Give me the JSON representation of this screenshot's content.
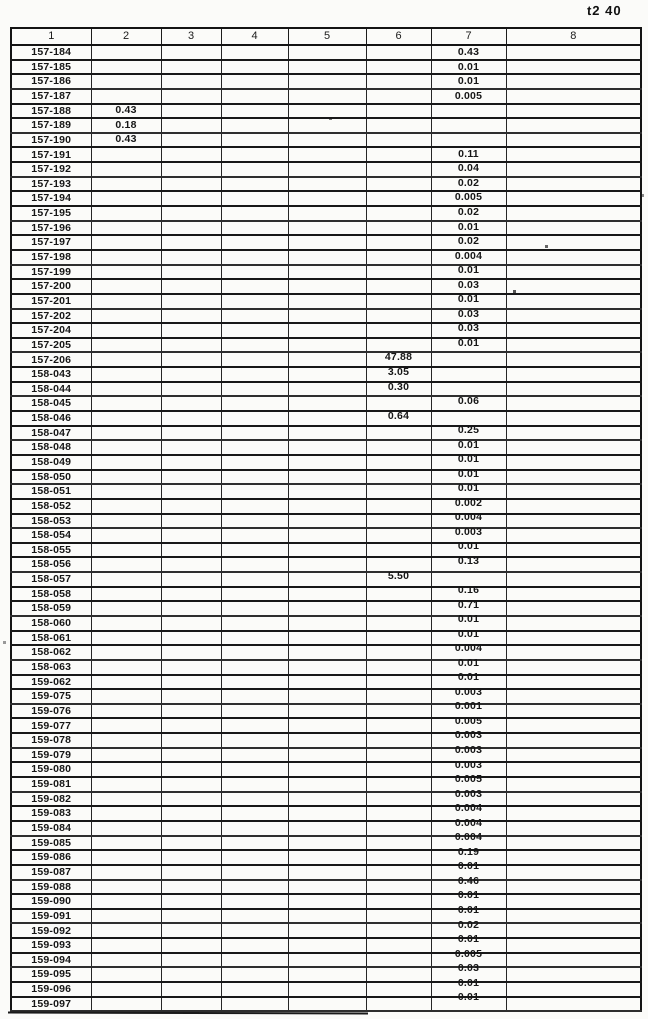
{
  "page": {
    "corner_label": "t2 40"
  },
  "table": {
    "headers": [
      "1",
      "2",
      "3",
      "4",
      "5",
      "6",
      "7",
      "8"
    ],
    "rows": [
      {
        "label": "157-184",
        "col": 7,
        "value": "0.43"
      },
      {
        "label": "157-185",
        "col": 7,
        "value": "0.01"
      },
      {
        "label": "157-186",
        "col": 7,
        "value": "0.01"
      },
      {
        "label": "157-187",
        "col": 7,
        "value": "0.005"
      },
      {
        "label": "157-188",
        "col": 2,
        "value": "0.43"
      },
      {
        "label": "157-189",
        "col": 2,
        "value": "0.18"
      },
      {
        "label": "157-190",
        "col": 2,
        "value": "0.43"
      },
      {
        "label": "157-191",
        "col": 7,
        "value": "0.11"
      },
      {
        "label": "157-192",
        "col": 7,
        "value": "0.04"
      },
      {
        "label": "157-193",
        "col": 7,
        "value": "0.02"
      },
      {
        "label": "157-194",
        "col": 7,
        "value": "0.005"
      },
      {
        "label": "157-195",
        "col": 7,
        "value": "0.02"
      },
      {
        "label": "157-196",
        "col": 7,
        "value": "0.01"
      },
      {
        "label": "157-197",
        "col": 7,
        "value": "0.02"
      },
      {
        "label": "157-198",
        "col": 7,
        "value": "0.004"
      },
      {
        "label": "157-199",
        "col": 7,
        "value": "0.01"
      },
      {
        "label": "157-200",
        "col": 7,
        "value": "0.03"
      },
      {
        "label": "157-201",
        "col": 7,
        "value": "0.01"
      },
      {
        "label": "157-202",
        "col": 7,
        "value": "0.03"
      },
      {
        "label": "157-204",
        "col": 7,
        "value": "0.03"
      },
      {
        "label": "157-205",
        "col": 7,
        "value": "0.01"
      },
      {
        "label": "157-206",
        "col": 6,
        "value": "47.88"
      },
      {
        "label": "158-043",
        "col": 6,
        "value": "3.05"
      },
      {
        "label": "158-044",
        "col": 6,
        "value": "0.30"
      },
      {
        "label": "158-045",
        "col": 7,
        "value": "0.06"
      },
      {
        "label": "158-046",
        "col": 6,
        "value": "0.64"
      },
      {
        "label": "158-047",
        "col": 7,
        "value": "0.25"
      },
      {
        "label": "158-048",
        "col": 7,
        "value": "0.01"
      },
      {
        "label": "158-049",
        "col": 7,
        "value": "0.01"
      },
      {
        "label": "158-050",
        "col": 7,
        "value": "0.01"
      },
      {
        "label": "158-051",
        "col": 7,
        "value": "0.01"
      },
      {
        "label": "158-052",
        "col": 7,
        "value": "0.002"
      },
      {
        "label": "158-053",
        "col": 7,
        "value": "0.004"
      },
      {
        "label": "158-054",
        "col": 7,
        "value": "0.003"
      },
      {
        "label": "158-055",
        "col": 7,
        "value": "0.01"
      },
      {
        "label": "158-056",
        "col": 7,
        "value": "0.13"
      },
      {
        "label": "158-057",
        "col": 6,
        "value": "5.50"
      },
      {
        "label": "158-058",
        "col": 7,
        "value": "0.16"
      },
      {
        "label": "158-059",
        "col": 7,
        "value": "0.71"
      },
      {
        "label": "158-060",
        "col": 7,
        "value": "0.01"
      },
      {
        "label": "158-061",
        "col": 7,
        "value": "0.01"
      },
      {
        "label": "158-062",
        "col": 7,
        "value": "0.004"
      },
      {
        "label": "158-063",
        "col": 7,
        "value": "0.01"
      },
      {
        "label": "159-062",
        "col": 7,
        "value": "0.01"
      },
      {
        "label": "159-075",
        "col": 7,
        "value": "0.003"
      },
      {
        "label": "159-076",
        "col": 7,
        "value": "0.001"
      },
      {
        "label": "159-077",
        "col": 7,
        "value": "0.005"
      },
      {
        "label": "159-078",
        "col": 7,
        "value": "0.003"
      },
      {
        "label": "159-079",
        "col": 7,
        "value": "0.003"
      },
      {
        "label": "159-080",
        "col": 7,
        "value": "0.003"
      },
      {
        "label": "159-081",
        "col": 7,
        "value": "0.005"
      },
      {
        "label": "159-082",
        "col": 7,
        "value": "0.003"
      },
      {
        "label": "159-083",
        "col": 7,
        "value": "0.004"
      },
      {
        "label": "159-084",
        "col": 7,
        "value": "0.004"
      },
      {
        "label": "159-085",
        "col": 7,
        "value": "0.004"
      },
      {
        "label": "159-086",
        "col": 7,
        "value": "0.19"
      },
      {
        "label": "159-087",
        "col": 7,
        "value": "0.01"
      },
      {
        "label": "159-088",
        "col": 7,
        "value": "0.46"
      },
      {
        "label": "159-090",
        "col": 7,
        "value": "0.01"
      },
      {
        "label": "159-091",
        "col": 7,
        "value": "0.01"
      },
      {
        "label": "159-092",
        "col": 7,
        "value": "0.02"
      },
      {
        "label": "159-093",
        "col": 7,
        "value": "0.01"
      },
      {
        "label": "159-094",
        "col": 7,
        "value": "0.005"
      },
      {
        "label": "159-095",
        "col": 7,
        "value": "0.03"
      },
      {
        "label": "159-096",
        "col": 7,
        "value": "0.01"
      },
      {
        "label": "159-097",
        "col": 7,
        "value": "0.01"
      }
    ]
  }
}
